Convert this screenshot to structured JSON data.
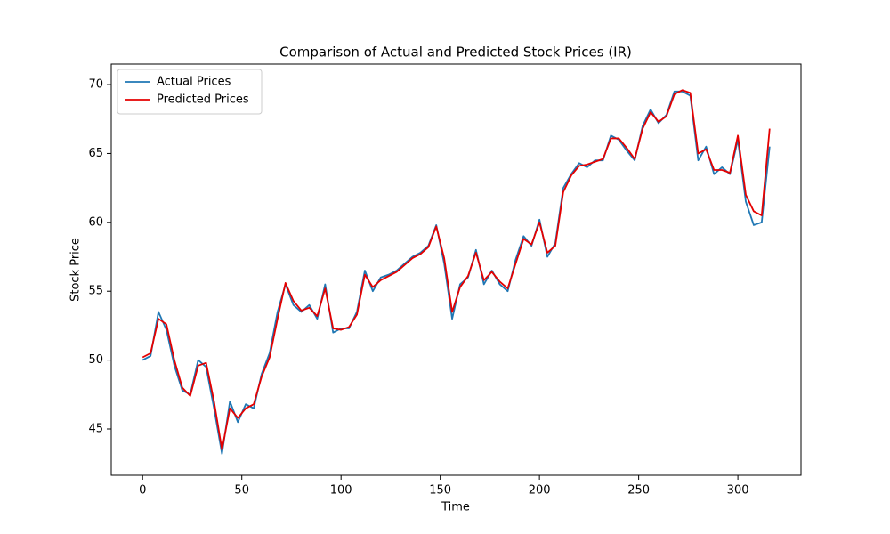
{
  "chart_data": {
    "type": "line",
    "title": "Comparison of Actual and Predicted Stock Prices (IR)",
    "x_label": "Time",
    "y_label": "Stock Price",
    "x": [
      0,
      4,
      8,
      12,
      16,
      20,
      24,
      28,
      32,
      36,
      40,
      44,
      48,
      52,
      56,
      60,
      64,
      68,
      72,
      76,
      80,
      84,
      88,
      92,
      96,
      100,
      104,
      108,
      112,
      116,
      120,
      124,
      128,
      132,
      136,
      140,
      144,
      148,
      152,
      156,
      160,
      164,
      168,
      172,
      176,
      180,
      184,
      188,
      192,
      196,
      200,
      204,
      208,
      212,
      216,
      220,
      224,
      228,
      232,
      236,
      240,
      244,
      248,
      252,
      256,
      260,
      264,
      268,
      272,
      276,
      280,
      284,
      288,
      292,
      296,
      300,
      304,
      308,
      312,
      316
    ],
    "series": [
      {
        "name": "Actual Prices",
        "color": "#1f77b4",
        "values": [
          50.0,
          50.3,
          53.5,
          52.2,
          49.6,
          47.8,
          47.5,
          50.0,
          49.5,
          46.5,
          43.2,
          47.0,
          45.5,
          46.8,
          46.5,
          49.0,
          50.5,
          53.5,
          55.5,
          54.0,
          53.5,
          54.0,
          53.0,
          55.5,
          52.0,
          52.3,
          52.3,
          53.5,
          56.5,
          55.0,
          56.0,
          56.2,
          56.5,
          57.0,
          57.5,
          57.8,
          58.3,
          59.8,
          57.0,
          53.0,
          55.5,
          56.0,
          58.0,
          55.5,
          56.5,
          55.5,
          55.0,
          57.3,
          59.0,
          58.3,
          60.2,
          57.5,
          58.5,
          62.5,
          63.5,
          64.3,
          64.0,
          64.5,
          64.5,
          66.3,
          66.0,
          65.2,
          64.5,
          67.0,
          68.2,
          67.2,
          67.8,
          69.5,
          69.5,
          69.2,
          64.5,
          65.5,
          63.5,
          64.0,
          63.5,
          66.0,
          61.5,
          59.8,
          60.0,
          65.5
        ]
      },
      {
        "name": "Predicted Prices",
        "color": "#e50000",
        "values": [
          50.2,
          50.5,
          53.0,
          52.6,
          50.0,
          48.0,
          47.4,
          49.6,
          49.8,
          47.0,
          43.5,
          46.5,
          45.8,
          46.5,
          46.8,
          48.8,
          50.2,
          53.0,
          55.6,
          54.3,
          53.6,
          53.8,
          53.2,
          55.2,
          52.3,
          52.2,
          52.4,
          53.3,
          56.2,
          55.3,
          55.8,
          56.1,
          56.4,
          56.9,
          57.4,
          57.7,
          58.2,
          59.7,
          57.4,
          53.5,
          55.3,
          56.1,
          57.8,
          55.8,
          56.4,
          55.7,
          55.2,
          57.0,
          58.8,
          58.4,
          60.0,
          57.8,
          58.3,
          62.2,
          63.4,
          64.1,
          64.2,
          64.4,
          64.6,
          66.1,
          66.1,
          65.4,
          64.6,
          66.8,
          68.0,
          67.3,
          67.7,
          69.3,
          69.6,
          69.4,
          65.0,
          65.3,
          63.8,
          63.8,
          63.6,
          66.3,
          62.0,
          60.8,
          60.5,
          66.8
        ]
      }
    ],
    "xlim": [
      -15.8,
      331.8
    ],
    "ylim": [
      41.64,
      71.49
    ],
    "xticks": [
      0,
      50,
      100,
      150,
      200,
      250,
      300
    ],
    "yticks": [
      45,
      50,
      55,
      60,
      65,
      70
    ],
    "grid": false,
    "legend": "upper-left"
  }
}
